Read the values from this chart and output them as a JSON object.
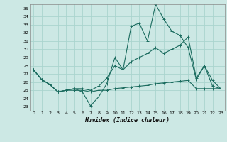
{
  "xlabel": "Humidex (Indice chaleur)",
  "bg_color": "#cce8e4",
  "grid_color": "#aad4ce",
  "line_color": "#1a6b5e",
  "xlim": [
    -0.5,
    23.5
  ],
  "ylim": [
    22.5,
    35.5
  ],
  "xticks": [
    0,
    1,
    2,
    3,
    4,
    5,
    6,
    7,
    8,
    9,
    10,
    11,
    12,
    13,
    14,
    15,
    16,
    17,
    18,
    19,
    20,
    21,
    22,
    23
  ],
  "yticks": [
    23,
    24,
    25,
    26,
    27,
    28,
    29,
    30,
    31,
    32,
    33,
    34,
    35
  ],
  "series1_x": [
    0,
    1,
    2,
    3,
    4,
    5,
    6,
    7,
    8,
    9,
    10,
    11,
    12,
    13,
    14,
    15,
    16,
    17,
    18,
    19,
    20,
    21,
    22,
    23
  ],
  "series1_y": [
    27.5,
    26.3,
    25.7,
    24.8,
    25.0,
    25.2,
    24.8,
    23.1,
    24.2,
    25.8,
    29.0,
    27.5,
    32.8,
    33.2,
    31.0,
    35.5,
    33.7,
    32.2,
    31.7,
    30.2,
    26.3,
    28.0,
    25.5,
    25.2
  ],
  "series2_x": [
    0,
    1,
    2,
    3,
    4,
    5,
    6,
    7,
    8,
    9,
    10,
    11,
    12,
    13,
    14,
    15,
    16,
    17,
    18,
    19,
    20,
    21,
    22,
    23
  ],
  "series2_y": [
    27.5,
    26.3,
    25.7,
    24.8,
    25.0,
    25.2,
    25.2,
    25.0,
    25.5,
    26.5,
    28.0,
    27.5,
    28.5,
    29.0,
    29.5,
    30.2,
    29.5,
    30.0,
    30.5,
    31.5,
    26.5,
    28.0,
    26.2,
    25.2
  ],
  "series3_x": [
    0,
    1,
    2,
    3,
    4,
    5,
    6,
    7,
    8,
    9,
    10,
    11,
    12,
    13,
    14,
    15,
    16,
    17,
    18,
    19,
    20,
    21,
    22,
    23
  ],
  "series3_y": [
    27.5,
    26.3,
    25.7,
    24.8,
    25.0,
    25.0,
    25.0,
    24.8,
    25.0,
    25.0,
    25.2,
    25.3,
    25.4,
    25.5,
    25.6,
    25.8,
    25.9,
    26.0,
    26.1,
    26.2,
    25.2,
    25.2,
    25.2,
    25.2
  ]
}
